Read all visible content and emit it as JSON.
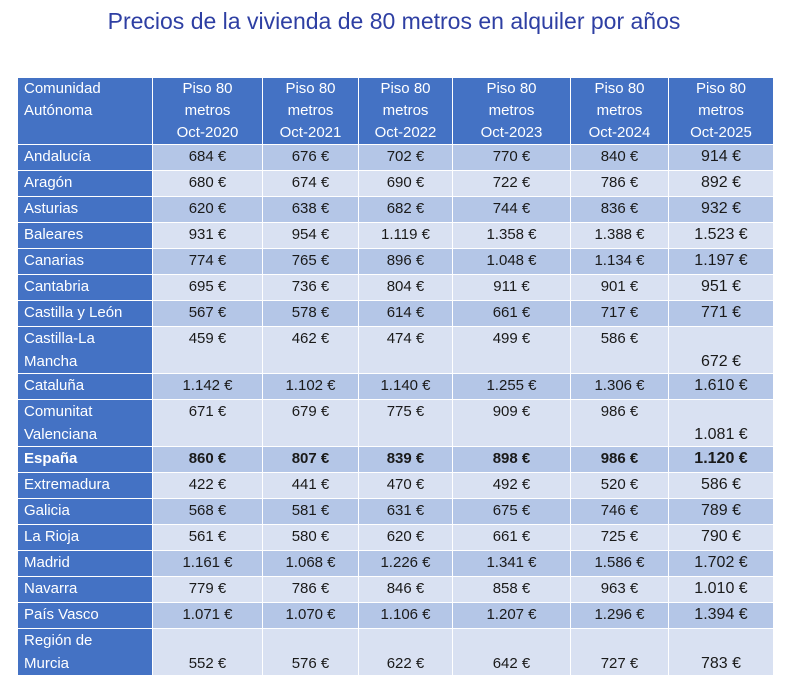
{
  "title": "Precios de la vivienda de 80 metros en alquiler por años",
  "table": {
    "headers": [
      [
        "Comunidad",
        "Autónoma"
      ],
      [
        "Piso 80",
        "metros",
        "Oct-2020"
      ],
      [
        "Piso 80",
        "metros",
        "Oct-2021"
      ],
      [
        "Piso 80",
        "metros",
        "Oct-2022"
      ],
      [
        "Piso 80",
        "metros",
        "Oct-2023"
      ],
      [
        "Piso 80",
        "metros",
        "Oct-2024"
      ],
      [
        "Piso 80",
        "metros",
        "Oct-2025"
      ]
    ],
    "rows": [
      {
        "region": [
          "Andalucía"
        ],
        "values": [
          "684 €",
          "676 €",
          "702 €",
          "770 €",
          "840 €",
          "914 €"
        ]
      },
      {
        "region": [
          "Aragón"
        ],
        "values": [
          "680 €",
          "674 €",
          "690 €",
          "722 €",
          "786 €",
          "892 €"
        ]
      },
      {
        "region": [
          "Asturias"
        ],
        "values": [
          "620 €",
          "638 €",
          "682 €",
          "744 €",
          "836 €",
          "932 €"
        ]
      },
      {
        "region": [
          "Baleares"
        ],
        "values": [
          "931 €",
          "954 €",
          "1.119 €",
          "1.358 €",
          "1.388 €",
          "1.523 €"
        ]
      },
      {
        "region": [
          "Canarias"
        ],
        "values": [
          "774 €",
          "765 €",
          "896 €",
          "1.048 €",
          "1.134 €",
          "1.197 €"
        ]
      },
      {
        "region": [
          "Cantabria"
        ],
        "values": [
          "695 €",
          "736 €",
          "804 €",
          "911 €",
          "901 €",
          "951 €"
        ]
      },
      {
        "region": [
          "Castilla y León"
        ],
        "values": [
          "567 €",
          "578 €",
          "614 €",
          "661 €",
          "717 €",
          "771 €"
        ]
      },
      {
        "region": [
          "Castilla-La",
          "Mancha"
        ],
        "values": [
          "459 €",
          "462 €",
          "474 €",
          "499 €",
          "586 €",
          "672 €"
        ]
      },
      {
        "region": [
          "Cataluña"
        ],
        "values": [
          "1.142 €",
          "1.102 €",
          "1.140 €",
          "1.255 €",
          "1.306 €",
          "1.610 €"
        ]
      },
      {
        "region": [
          "Comunitat",
          "Valenciana"
        ],
        "values": [
          "671 €",
          "679 €",
          "775 €",
          "909 €",
          "986 €",
          "1.081 €"
        ]
      },
      {
        "region": [
          "España"
        ],
        "values": [
          "860 €",
          "807 €",
          "839 €",
          "898 €",
          "986 €",
          "1.120 €"
        ],
        "bold": true
      },
      {
        "region": [
          "Extremadura"
        ],
        "values": [
          "422 €",
          "441 €",
          "470 €",
          "492 €",
          "520 €",
          "586 €"
        ]
      },
      {
        "region": [
          "Galicia"
        ],
        "values": [
          "568 €",
          "581 €",
          "631 €",
          "675 €",
          "746 €",
          "789 €"
        ]
      },
      {
        "region": [
          "La Rioja"
        ],
        "values": [
          "561 €",
          "580 €",
          "620 €",
          "661 €",
          "725 €",
          "790 €"
        ]
      },
      {
        "region": [
          "Madrid"
        ],
        "values": [
          "1.161 €",
          "1.068 €",
          "1.226 €",
          "1.341 €",
          "1.586 €",
          "1.702 €"
        ]
      },
      {
        "region": [
          "Navarra"
        ],
        "values": [
          "779 €",
          "786 €",
          "846 €",
          "858 €",
          "963 €",
          "1.010 €"
        ]
      },
      {
        "region": [
          "País Vasco"
        ],
        "values": [
          "1.071 €",
          "1.070 €",
          "1.106 €",
          "1.207 €",
          "1.296 €",
          "1.394 €"
        ]
      },
      {
        "region": [
          "Región de",
          "Murcia"
        ],
        "values": [
          "552 €",
          "576 €",
          "622 €",
          "642 €",
          "727 €",
          "783 €"
        ],
        "values_bottom": true
      }
    ]
  }
}
